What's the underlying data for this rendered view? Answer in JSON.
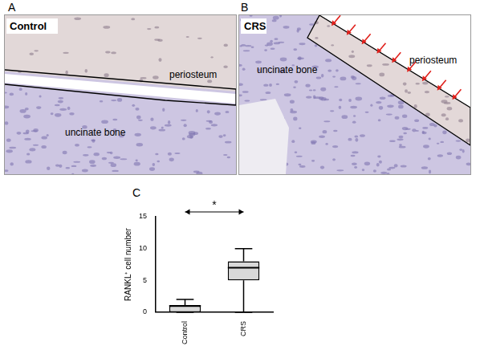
{
  "panels": [
    {
      "label": "A",
      "title": "Control",
      "annotations": [
        "periosteum",
        "uncinate bone"
      ]
    },
    {
      "label": "B",
      "title": "CRS",
      "annotations": [
        "periosteum",
        "uncinate bone"
      ]
    }
  ],
  "chart_panel_label": "C",
  "chart_data": {
    "type": "boxplot",
    "categories": [
      "Control",
      "CRS"
    ],
    "boxes": [
      {
        "min": 0,
        "q1": 0,
        "median": 1,
        "q3": 1,
        "max": 2
      },
      {
        "min": 0,
        "q1": 5,
        "median": 7,
        "q3": 8,
        "max": 10
      }
    ],
    "color": "#d9d9d9",
    "ylabel": "RANKL⁺ cell number",
    "ylim": [
      0,
      15
    ],
    "yticks": [
      0,
      5,
      10,
      15
    ],
    "annotations": [
      "*"
    ],
    "grid": false
  }
}
